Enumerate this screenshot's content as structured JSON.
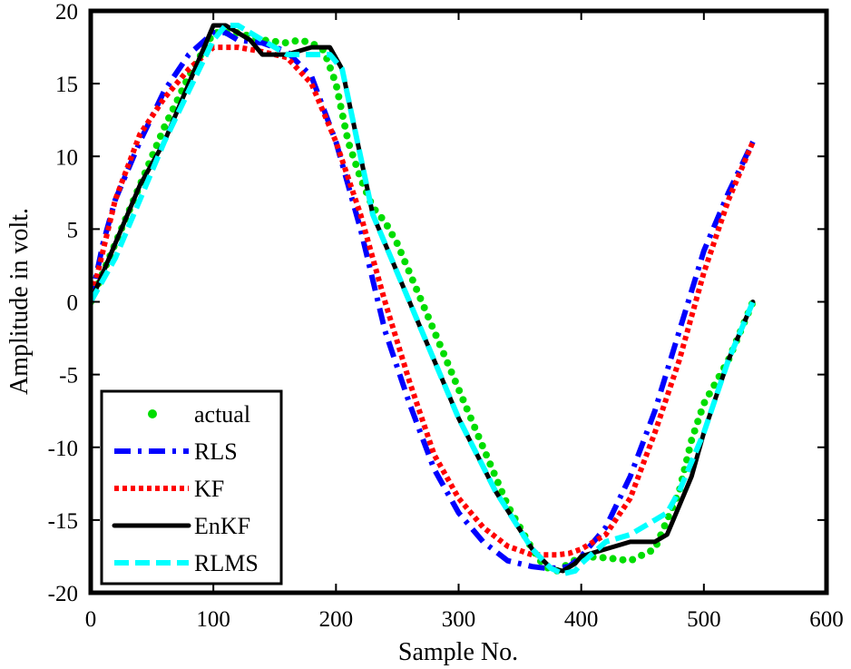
{
  "chart_data": {
    "type": "line",
    "title": "",
    "xlabel": "Sample No.",
    "ylabel": "Amplitude in volt.",
    "xlim": [
      0,
      600
    ],
    "ylim": [
      -20,
      20
    ],
    "xticks": [
      0,
      100,
      200,
      300,
      400,
      500,
      600
    ],
    "yticks": [
      -20,
      -15,
      -10,
      -5,
      0,
      5,
      10,
      15,
      20
    ],
    "xtick_labels": [
      "0",
      "100",
      "200",
      "300",
      "400",
      "500",
      "600"
    ],
    "ytick_labels": [
      "-20",
      "-15",
      "-10",
      "-5",
      "0",
      "5",
      "10",
      "15",
      "20"
    ],
    "grid": false,
    "legend_position": "bottom-left",
    "series": [
      {
        "name": "actual",
        "style": "dots",
        "color": "#00dd00",
        "x": [
          0,
          20,
          40,
          60,
          80,
          100,
          110,
          120,
          140,
          160,
          170,
          180,
          190,
          200,
          210,
          220,
          230,
          240,
          250,
          260,
          280,
          300,
          320,
          340,
          360,
          370,
          380,
          390,
          400,
          420,
          440,
          460,
          480,
          490,
          500,
          510,
          520,
          530,
          540
        ],
        "y": [
          0,
          4,
          8,
          12,
          15.5,
          18.5,
          18.5,
          18.5,
          18,
          17.8,
          18,
          17.8,
          17.3,
          15,
          11,
          8.5,
          6.5,
          5.5,
          4,
          2,
          -2,
          -6,
          -10,
          -14,
          -17,
          -18.2,
          -18.5,
          -18,
          -17.5,
          -17.6,
          -17.8,
          -17,
          -13,
          -9.5,
          -7,
          -5.5,
          -4,
          -2,
          0
        ]
      },
      {
        "name": "RLS",
        "style": "dashdot",
        "color": "#0000ff",
        "x": [
          0,
          10,
          20,
          40,
          60,
          80,
          100,
          110,
          120,
          140,
          160,
          180,
          200,
          220,
          240,
          260,
          280,
          300,
          320,
          340,
          360,
          370,
          380,
          390,
          400,
          420,
          440,
          460,
          480,
          500,
          520,
          540
        ],
        "y": [
          0,
          4,
          7,
          11,
          14.5,
          17,
          18.5,
          18.5,
          18,
          17.8,
          17.2,
          15.5,
          11,
          5,
          -2,
          -7,
          -11.5,
          -14.5,
          -16.5,
          -17.8,
          -18.2,
          -18.3,
          -18.3,
          -18.2,
          -17.5,
          -15.5,
          -12,
          -7.5,
          -2,
          3.5,
          7.5,
          11
        ]
      },
      {
        "name": "KF",
        "style": "dotted",
        "color": "#ff0000",
        "x": [
          0,
          10,
          20,
          40,
          60,
          80,
          100,
          110,
          120,
          140,
          160,
          180,
          200,
          220,
          240,
          260,
          280,
          300,
          320,
          340,
          360,
          370,
          380,
          390,
          400,
          420,
          440,
          460,
          480,
          500,
          520,
          540
        ],
        "y": [
          0,
          3.5,
          7,
          11.5,
          14,
          16,
          17.5,
          17.5,
          17.5,
          17.2,
          16.8,
          15,
          11,
          6,
          0,
          -5.5,
          -10.5,
          -13.5,
          -15.5,
          -16.8,
          -17.4,
          -17.4,
          -17.4,
          -17.3,
          -17,
          -16,
          -13.5,
          -9,
          -4,
          2,
          7,
          11
        ]
      },
      {
        "name": "EnKF",
        "style": "solid",
        "color": "#000000",
        "x": [
          0,
          20,
          40,
          60,
          80,
          100,
          110,
          120,
          130,
          140,
          150,
          160,
          180,
          195,
          205,
          215,
          230,
          250,
          270,
          300,
          330,
          360,
          375,
          385,
          395,
          400,
          420,
          440,
          460,
          470,
          480,
          490,
          500,
          520,
          540
        ],
        "y": [
          0,
          4,
          8,
          11,
          15,
          19,
          19,
          18.5,
          18,
          17,
          17,
          17,
          17.5,
          17.5,
          16,
          12,
          6,
          2,
          -2,
          -8,
          -13,
          -17,
          -18.3,
          -18.5,
          -18,
          -17.5,
          -17,
          -16.5,
          -16.5,
          -16,
          -14,
          -12,
          -9,
          -4,
          0
        ]
      },
      {
        "name": "RLMS",
        "style": "dashed",
        "color": "#00ffff",
        "x": [
          0,
          20,
          40,
          60,
          80,
          100,
          110,
          120,
          130,
          140,
          150,
          160,
          180,
          195,
          205,
          215,
          230,
          250,
          270,
          300,
          330,
          360,
          375,
          385,
          395,
          400,
          420,
          440,
          460,
          470,
          480,
          490,
          500,
          520,
          540
        ],
        "y": [
          0,
          3,
          7,
          11,
          14.5,
          18,
          19,
          19,
          18.5,
          18,
          17.5,
          17,
          17,
          17,
          16,
          12,
          6,
          2,
          -2,
          -8,
          -13,
          -17,
          -18.3,
          -18.7,
          -18.5,
          -18,
          -16.5,
          -16,
          -15,
          -14.5,
          -13,
          -11,
          -9,
          -4,
          0
        ]
      }
    ]
  }
}
